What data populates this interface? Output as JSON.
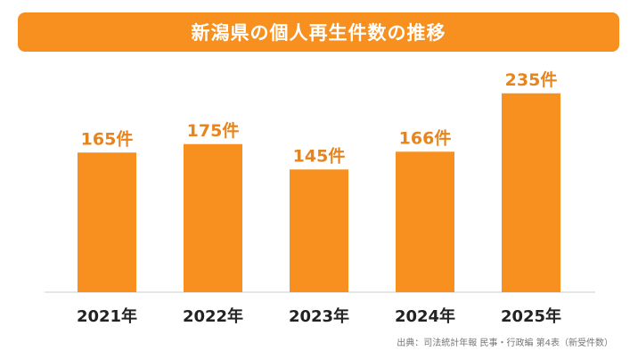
{
  "chart_data": {
    "type": "bar",
    "title": "新潟県の個人再生件数の推移",
    "categories": [
      "2021年",
      "2022年",
      "2023年",
      "2024年",
      "2025年"
    ],
    "values": [
      165,
      175,
      145,
      166,
      235
    ],
    "data_labels": [
      "165件",
      "175件",
      "145件",
      "166件",
      "235件"
    ],
    "ylim": [
      0,
      240
    ],
    "grid": false,
    "bar_color": "#f7901e",
    "label_color": "#e8841c"
  },
  "source": "出典：司法統計年報 民事・行政編 第4表（新受件数）"
}
